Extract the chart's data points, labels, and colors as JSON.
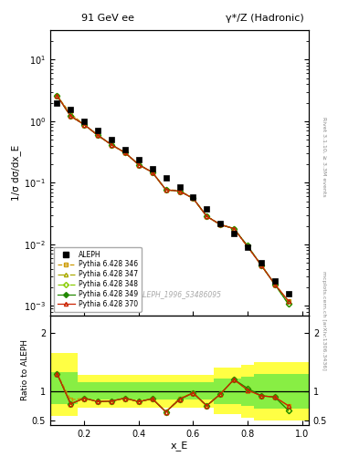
{
  "title_left": "91 GeV ee",
  "title_right": "γ*/Z (Hadronic)",
  "ylabel_main": "1/σ dσ/dx_E",
  "ylabel_ratio": "Ratio to ALEPH",
  "xlabel": "x_E",
  "right_label_top": "Rivet 3.1.10, ≥ 3.3M events",
  "right_label_bottom": "mcplots.cern.ch [arXiv:1306.3436]",
  "watermark": "ALEPH_1996_S3486095",
  "aleph_x": [
    0.1,
    0.15,
    0.2,
    0.25,
    0.3,
    0.35,
    0.4,
    0.45,
    0.5,
    0.55,
    0.6,
    0.65,
    0.7,
    0.75,
    0.8,
    0.85,
    0.9,
    0.95
  ],
  "aleph_y": [
    2.0,
    1.55,
    1.0,
    0.72,
    0.5,
    0.35,
    0.24,
    0.17,
    0.12,
    0.085,
    0.058,
    0.038,
    0.022,
    0.015,
    0.009,
    0.005,
    0.0025,
    0.0016
  ],
  "mc_x": [
    0.1,
    0.15,
    0.2,
    0.25,
    0.3,
    0.35,
    0.4,
    0.45,
    0.5,
    0.55,
    0.6,
    0.65,
    0.7,
    0.75,
    0.8,
    0.85,
    0.9,
    0.95
  ],
  "mc346_y": [
    2.6,
    1.32,
    0.88,
    0.59,
    0.415,
    0.308,
    0.197,
    0.148,
    0.077,
    0.075,
    0.056,
    0.0285,
    0.0209,
    0.018,
    0.0092,
    0.0046,
    0.00225,
    0.0012
  ],
  "mc347_y": [
    2.6,
    1.21,
    0.88,
    0.59,
    0.415,
    0.308,
    0.197,
    0.148,
    0.077,
    0.073,
    0.056,
    0.0285,
    0.0209,
    0.018,
    0.0092,
    0.0046,
    0.00225,
    0.0012
  ],
  "mc348_y": [
    2.6,
    1.21,
    0.88,
    0.59,
    0.415,
    0.308,
    0.197,
    0.148,
    0.077,
    0.073,
    0.056,
    0.0285,
    0.0209,
    0.018,
    0.00945,
    0.0046,
    0.00225,
    0.00107
  ],
  "mc349_y": [
    2.6,
    1.21,
    0.88,
    0.59,
    0.415,
    0.308,
    0.197,
    0.148,
    0.077,
    0.073,
    0.056,
    0.0285,
    0.0209,
    0.018,
    0.00945,
    0.0046,
    0.00225,
    0.00107
  ],
  "mc370_y": [
    2.6,
    1.21,
    0.88,
    0.59,
    0.415,
    0.308,
    0.197,
    0.148,
    0.077,
    0.073,
    0.056,
    0.0285,
    0.0209,
    0.018,
    0.0092,
    0.0046,
    0.00225,
    0.0012
  ],
  "ratio_x": [
    0.1,
    0.15,
    0.2,
    0.25,
    0.3,
    0.35,
    0.4,
    0.45,
    0.5,
    0.55,
    0.6,
    0.65,
    0.7,
    0.75,
    0.8,
    0.85,
    0.9,
    0.95
  ],
  "ratio346_y": [
    1.3,
    0.85,
    0.88,
    0.82,
    0.83,
    0.88,
    0.82,
    0.87,
    0.645,
    0.88,
    0.97,
    0.75,
    0.95,
    1.2,
    1.02,
    0.92,
    0.9,
    0.75
  ],
  "ratio347_y": [
    1.3,
    0.78,
    0.88,
    0.82,
    0.83,
    0.88,
    0.82,
    0.87,
    0.645,
    0.86,
    0.97,
    0.75,
    0.95,
    1.2,
    1.02,
    0.92,
    0.9,
    0.75
  ],
  "ratio348_y": [
    1.3,
    0.78,
    0.88,
    0.82,
    0.83,
    0.88,
    0.82,
    0.87,
    0.645,
    0.86,
    0.97,
    0.75,
    0.95,
    1.2,
    1.05,
    0.92,
    0.9,
    0.67
  ],
  "ratio349_y": [
    1.3,
    0.78,
    0.88,
    0.82,
    0.83,
    0.88,
    0.82,
    0.87,
    0.645,
    0.86,
    0.97,
    0.75,
    0.95,
    1.2,
    1.05,
    0.92,
    0.9,
    0.67
  ],
  "ratio370_y": [
    1.3,
    0.78,
    0.88,
    0.82,
    0.83,
    0.88,
    0.82,
    0.87,
    0.645,
    0.86,
    0.97,
    0.75,
    0.95,
    1.2,
    1.02,
    0.92,
    0.9,
    0.75
  ],
  "band_edges": [
    0.075,
    0.125,
    0.175,
    0.225,
    0.275,
    0.325,
    0.375,
    0.425,
    0.475,
    0.525,
    0.575,
    0.625,
    0.675,
    0.725,
    0.775,
    0.825,
    0.875,
    0.925,
    0.975,
    1.025
  ],
  "band_yellow_low": [
    0.58,
    0.58,
    0.72,
    0.72,
    0.72,
    0.72,
    0.72,
    0.72,
    0.72,
    0.72,
    0.72,
    0.72,
    0.6,
    0.6,
    0.55,
    0.5,
    0.5,
    0.5,
    0.5
  ],
  "band_yellow_high": [
    1.65,
    1.65,
    1.28,
    1.28,
    1.28,
    1.28,
    1.28,
    1.28,
    1.28,
    1.28,
    1.28,
    1.28,
    1.4,
    1.4,
    1.45,
    1.5,
    1.5,
    1.5,
    1.5
  ],
  "band_green_low": [
    0.78,
    0.78,
    0.85,
    0.85,
    0.85,
    0.85,
    0.85,
    0.85,
    0.85,
    0.85,
    0.85,
    0.85,
    0.78,
    0.78,
    0.75,
    0.7,
    0.7,
    0.7,
    0.7
  ],
  "band_green_high": [
    1.32,
    1.32,
    1.15,
    1.15,
    1.15,
    1.15,
    1.15,
    1.15,
    1.15,
    1.15,
    1.15,
    1.15,
    1.22,
    1.22,
    1.25,
    1.3,
    1.3,
    1.3,
    1.3
  ],
  "color346": "#cc9900",
  "color347": "#aaaa00",
  "color348": "#88cc00",
  "color349": "#228800",
  "color370": "#cc2200",
  "color_yellow": "#ffff44",
  "color_green": "#88ee44",
  "xticks": [
    0.2,
    0.4,
    0.6,
    0.8,
    1.0
  ],
  "main_yticks": [
    0.001,
    0.01,
    0.1,
    1.0,
    10.0
  ],
  "ratio_yticks": [
    0.5,
    1.0,
    2.0
  ],
  "ylim_main": [
    0.0007,
    30
  ],
  "ylim_ratio": [
    0.42,
    2.3
  ]
}
